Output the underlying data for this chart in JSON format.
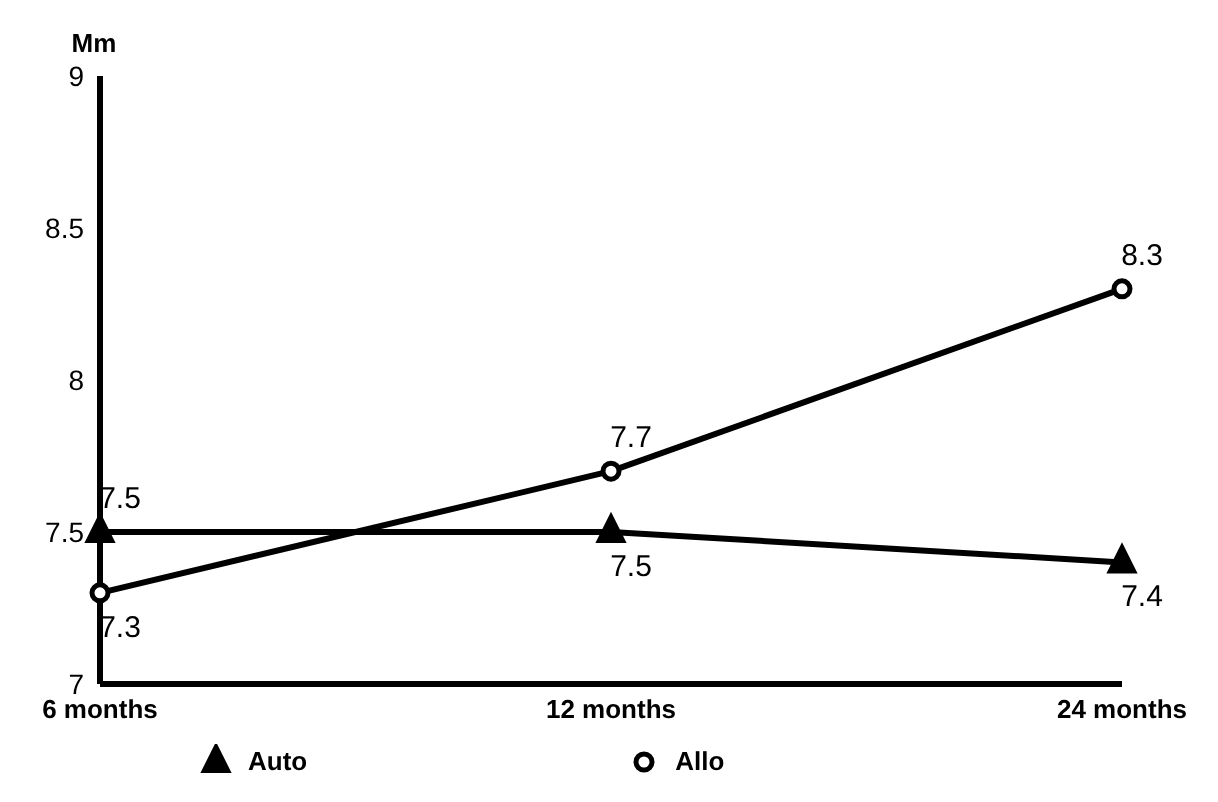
{
  "chart_data": {
    "type": "line",
    "ylabel": "Mm",
    "categories": [
      "6 months",
      "12 months",
      "24 months"
    ],
    "series": [
      {
        "name": "Auto",
        "color": "#000000",
        "marker": "triangle",
        "values": [
          7.5,
          7.5,
          7.4
        ]
      },
      {
        "name": "Allo",
        "color": "#000000",
        "marker": "circle",
        "values": [
          7.3,
          7.7,
          8.3
        ]
      }
    ],
    "ylim": [
      7,
      9
    ],
    "yticks": [
      7,
      7.5,
      8,
      8.5,
      9
    ],
    "grid": false,
    "legend": "bottom left",
    "data_labels": true
  }
}
